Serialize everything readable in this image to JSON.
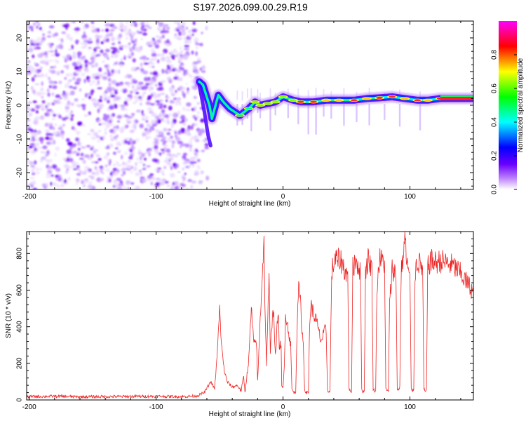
{
  "title": "S197.2026.099.00.29.R19",
  "colors": {
    "snr_line": "#ee2222",
    "spectrogram_speckle": "#7d1dff",
    "frame": "#000000",
    "background": "#ffffff"
  },
  "chart_data": [
    {
      "type": "heatmap",
      "title": "",
      "xlabel": "Height of straight line (km)",
      "ylabel": "Frequency (Hz)",
      "xlim": [
        -202,
        150
      ],
      "ylim": [
        -25,
        25
      ],
      "x_ticks": [
        -200,
        -100,
        0,
        100
      ],
      "x_tick_labels": [
        "-200",
        "-100",
        "0",
        "100"
      ],
      "y_ticks": [
        -20,
        -10,
        0,
        10,
        20
      ],
      "y_tick_labels": [
        "-20",
        "-10",
        "0",
        "10",
        "20"
      ],
      "noise_region_x": [
        -202,
        -66
      ],
      "colorbar": {
        "label": "Normalized spectral amplitude",
        "range": [
          0,
          1
        ],
        "ticks": [
          0.0,
          0.2,
          0.4,
          0.6,
          0.8
        ],
        "tick_labels": [
          "0.0",
          "0.2",
          "0.4",
          "0.6",
          "0.8"
        ],
        "colormap": [
          "#ffffff",
          "#7d00ff",
          "#0000ff",
          "#00ffff",
          "#00ff00",
          "#ffff00",
          "#ff0000",
          "#ff00ff"
        ]
      },
      "ridge": [
        {
          "x": -66,
          "f": 7,
          "a": 0.25
        },
        {
          "x": -63,
          "f": 6,
          "a": 0.3
        },
        {
          "x": -58,
          "f": 0,
          "a": 0.3
        },
        {
          "x": -56,
          "f": -4,
          "a": 0.28
        },
        {
          "x": -51,
          "f": 3,
          "a": 0.32
        },
        {
          "x": -47,
          "f": 1,
          "a": 0.35
        },
        {
          "x": -42,
          "f": -1,
          "a": 0.4
        },
        {
          "x": -34,
          "f": -3,
          "a": 0.45
        },
        {
          "x": -27,
          "f": -1,
          "a": 0.45
        },
        {
          "x": -22,
          "f": 1,
          "a": 0.5
        },
        {
          "x": -18,
          "f": 0,
          "a": 0.5
        },
        {
          "x": -12,
          "f": 0.5,
          "a": 0.55
        },
        {
          "x": -6,
          "f": 1,
          "a": 0.55
        },
        {
          "x": 0,
          "f": 2.5,
          "a": 0.55
        },
        {
          "x": 8,
          "f": 1.5,
          "a": 0.55
        },
        {
          "x": 14,
          "f": 1,
          "a": 0.8
        },
        {
          "x": 24,
          "f": 1,
          "a": 0.8
        },
        {
          "x": 34,
          "f": 1.5,
          "a": 0.7
        },
        {
          "x": 44,
          "f": 1.5,
          "a": 0.7
        },
        {
          "x": 56,
          "f": 1.5,
          "a": 0.75
        },
        {
          "x": 66,
          "f": 2,
          "a": 0.7
        },
        {
          "x": 76,
          "f": 2.2,
          "a": 0.75
        },
        {
          "x": 86,
          "f": 2.5,
          "a": 0.75
        },
        {
          "x": 96,
          "f": 2,
          "a": 0.7
        },
        {
          "x": 106,
          "f": 1.5,
          "a": 0.75
        },
        {
          "x": 114,
          "f": 1.5,
          "a": 0.7
        },
        {
          "x": 124,
          "f": 2,
          "a": 0.9
        },
        {
          "x": 150,
          "f": 2,
          "a": 0.95
        }
      ],
      "streaks_x": [
        -36,
        -32,
        -28,
        -25,
        -20,
        -18,
        -10,
        -6,
        4,
        12,
        20,
        26,
        32,
        38,
        48,
        58,
        68,
        80,
        92,
        108
      ]
    },
    {
      "type": "line",
      "title": "",
      "xlabel": "Height of straight line (km)",
      "ylabel": "SNR (10 * v/v)",
      "xlim": [
        -202,
        150
      ],
      "ylim": [
        0,
        920
      ],
      "x_ticks": [
        -200,
        -100,
        0,
        100
      ],
      "x_tick_labels": [
        "-200",
        "-100",
        "0",
        "100"
      ],
      "y_ticks": [
        0,
        200,
        400,
        600,
        800
      ],
      "y_tick_labels": [
        "0",
        "200",
        "400",
        "600",
        "800"
      ],
      "series": [
        {
          "name": "SNR",
          "points": [
            [
              -202,
              18
            ],
            [
              -180,
              20
            ],
            [
              -160,
              17
            ],
            [
              -140,
              18
            ],
            [
              -120,
              19
            ],
            [
              -100,
              20
            ],
            [
              -80,
              18
            ],
            [
              -68,
              22
            ],
            [
              -62,
              40
            ],
            [
              -57,
              100
            ],
            [
              -54,
              60
            ],
            [
              -52,
              230
            ],
            [
              -50,
              490
            ],
            [
              -48,
              260
            ],
            [
              -46,
              150
            ],
            [
              -44,
              100
            ],
            [
              -40,
              70
            ],
            [
              -36,
              80
            ],
            [
              -33,
              50
            ],
            [
              -31,
              130
            ],
            [
              -30,
              40
            ],
            [
              -27,
              220
            ],
            [
              -25,
              500
            ],
            [
              -23,
              300
            ],
            [
              -21,
              330
            ],
            [
              -20,
              100
            ],
            [
              -17,
              600
            ],
            [
              -15,
              880
            ],
            [
              -14,
              420
            ],
            [
              -13,
              200
            ],
            [
              -12,
              460
            ],
            [
              -11,
              650
            ],
            [
              -10,
              250
            ],
            [
              -8,
              520
            ],
            [
              -7,
              420
            ],
            [
              -6,
              230
            ],
            [
              -5,
              350
            ],
            [
              -4,
              500
            ],
            [
              -3,
              300
            ],
            [
              -1.5,
              300
            ],
            [
              -1,
              70
            ],
            [
              0,
              65
            ],
            [
              1,
              180
            ],
            [
              2,
              480
            ],
            [
              3,
              430
            ],
            [
              5,
              350
            ],
            [
              6,
              300
            ],
            [
              7,
              60
            ],
            [
              8,
              45
            ],
            [
              9,
              40
            ],
            [
              10,
              40
            ],
            [
              11,
              390
            ],
            [
              12,
              600
            ],
            [
              13,
              590
            ],
            [
              14,
              500
            ],
            [
              15,
              380
            ],
            [
              16,
              300
            ],
            [
              17,
              60
            ],
            [
              18,
              40
            ],
            [
              19,
              40
            ],
            [
              20,
              40
            ],
            [
              21,
              430
            ],
            [
              22,
              520
            ],
            [
              24,
              470
            ],
            [
              26,
              440
            ],
            [
              28,
              380
            ],
            [
              30,
              320
            ],
            [
              32,
              360
            ],
            [
              33,
              380
            ],
            [
              34,
              380
            ],
            [
              35,
              60
            ],
            [
              36,
              40
            ],
            [
              37,
              50
            ],
            [
              38,
              580
            ],
            [
              39,
              720
            ],
            [
              41,
              770
            ],
            [
              43,
              760
            ],
            [
              45,
              770
            ],
            [
              47,
              740
            ],
            [
              49,
              700
            ],
            [
              51,
              680
            ],
            [
              52,
              60
            ],
            [
              53,
              50
            ],
            [
              54,
              45
            ],
            [
              55,
              720
            ],
            [
              57,
              770
            ],
            [
              59,
              740
            ],
            [
              61,
              700
            ],
            [
              62,
              60
            ],
            [
              63,
              45
            ],
            [
              64,
              50
            ],
            [
              65,
              700
            ],
            [
              67,
              770
            ],
            [
              69,
              740
            ],
            [
              70,
              720
            ],
            [
              71,
              60
            ],
            [
              72,
              50
            ],
            [
              73,
              50
            ],
            [
              74,
              620
            ],
            [
              76,
              770
            ],
            [
              78,
              760
            ],
            [
              80,
              750
            ],
            [
              81,
              60
            ],
            [
              82,
              50
            ],
            [
              83,
              50
            ],
            [
              84,
              520
            ],
            [
              86,
              720
            ],
            [
              88,
              700
            ],
            [
              89,
              680
            ],
            [
              90,
              60
            ],
            [
              91,
              55
            ],
            [
              92,
              70
            ],
            [
              93,
              680
            ],
            [
              94,
              760
            ],
            [
              95,
              780
            ],
            [
              96,
              910
            ],
            [
              97,
              780
            ],
            [
              99,
              700
            ],
            [
              100,
              650
            ],
            [
              101,
              60
            ],
            [
              102,
              50
            ],
            [
              103,
              60
            ],
            [
              104,
              700
            ],
            [
              106,
              760
            ],
            [
              108,
              740
            ],
            [
              110,
              720
            ],
            [
              111,
              60
            ],
            [
              112,
              45
            ],
            [
              113,
              50
            ],
            [
              114,
              720
            ],
            [
              116,
              760
            ],
            [
              120,
              750
            ],
            [
              124,
              760
            ],
            [
              128,
              750
            ],
            [
              132,
              740
            ],
            [
              136,
              720
            ],
            [
              140,
              690
            ],
            [
              144,
              650
            ],
            [
              148,
              610
            ],
            [
              150,
              590
            ]
          ]
        }
      ]
    }
  ]
}
